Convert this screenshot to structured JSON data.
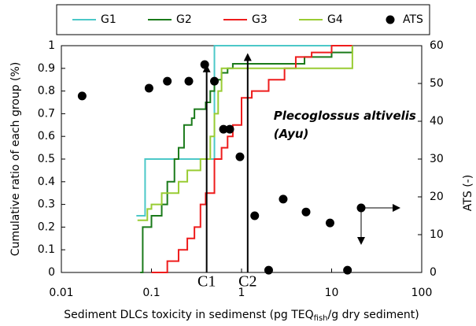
{
  "chart_data": {
    "type": "line",
    "xlabel": {
      "before": "Sediment DLCs toxicity in sedimenst (pg TEQ",
      "sub": "fish",
      "after": "/g dry sediment)"
    },
    "ylabel": "Cumulative ratio of each group (%)",
    "y2label": "ATS (-)",
    "xscale": "log",
    "xlim": [
      0.01,
      100
    ],
    "xticks": [
      0.01,
      0.1,
      1,
      10,
      100
    ],
    "ylim": [
      0,
      1
    ],
    "yticks": [
      0,
      0.1,
      0.2,
      0.3,
      0.4,
      0.5,
      0.6,
      0.7,
      0.8,
      0.9,
      1
    ],
    "y2lim": [
      0,
      60
    ],
    "y2ticks": [
      0,
      10,
      20,
      30,
      40,
      50,
      60
    ],
    "legend": "top",
    "series": [
      {
        "name": "G1",
        "type": "step",
        "color": "#4cc8c8",
        "x": [
          0.068,
          0.085,
          0.5,
          17
        ],
        "values": [
          0.25,
          0.5,
          1,
          1
        ]
      },
      {
        "name": "G2",
        "type": "step",
        "color": "#1a7a1a",
        "x": [
          0.075,
          0.08,
          0.1,
          0.13,
          0.15,
          0.18,
          0.2,
          0.23,
          0.28,
          0.3,
          0.4,
          0.45,
          0.5,
          0.6,
          0.7,
          0.8,
          1,
          2,
          5,
          10,
          17
        ],
        "values": [
          0,
          0.2,
          0.25,
          0.3,
          0.4,
          0.5,
          0.55,
          0.65,
          0.68,
          0.72,
          0.75,
          0.8,
          0.85,
          0.88,
          0.9,
          0.92,
          0.92,
          0.92,
          0.95,
          0.97,
          1
        ]
      },
      {
        "name": "G3",
        "type": "step",
        "color": "#ee1c1c",
        "x": [
          0.1,
          0.15,
          0.2,
          0.25,
          0.3,
          0.35,
          0.4,
          0.5,
          0.6,
          0.7,
          0.8,
          1,
          1.3,
          2,
          3,
          4,
          6,
          10,
          17
        ],
        "values": [
          0,
          0.05,
          0.1,
          0.15,
          0.2,
          0.3,
          0.35,
          0.5,
          0.55,
          0.6,
          0.65,
          0.77,
          0.8,
          0.85,
          0.9,
          0.95,
          0.97,
          1,
          1
        ]
      },
      {
        "name": "G4",
        "type": "step",
        "color": "#99cc33",
        "x": [
          0.07,
          0.09,
          0.1,
          0.13,
          0.2,
          0.25,
          0.35,
          0.45,
          0.5,
          0.55,
          0.6,
          17
        ],
        "values": [
          0.23,
          0.28,
          0.3,
          0.35,
          0.4,
          0.45,
          0.5,
          0.6,
          0.7,
          0.8,
          0.9,
          1
        ]
      },
      {
        "name": "ATS",
        "type": "scatter",
        "axis": "y2",
        "color": "#000000",
        "x": [
          0.017,
          0.094,
          0.15,
          0.26,
          0.39,
          0.5,
          0.63,
          0.74,
          0.96,
          1.4,
          2.9,
          5.2,
          9.6,
          2,
          15
        ],
        "values": [
          46.7,
          48.75,
          50.6,
          50.6,
          55,
          50.6,
          37.9,
          37.9,
          30.6,
          15,
          19.4,
          16,
          13.1,
          0.6,
          0.6
        ]
      }
    ],
    "annotations": [
      {
        "text": "C1",
        "x": 0.41,
        "y": 0.9
      },
      {
        "text": "C2",
        "x": 1.17,
        "y": 0.95
      },
      {
        "text": "Plecoglossus altivelis",
        "x": 1.4,
        "y": 0.69
      },
      {
        "text": "(Ayu)",
        "x": 1.4,
        "y": 0.61
      }
    ]
  }
}
